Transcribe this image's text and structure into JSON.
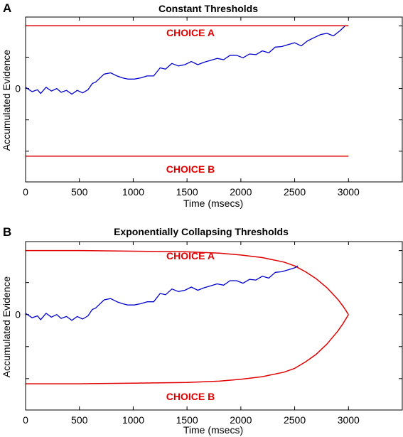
{
  "colors": {
    "threshold": "#e00000",
    "evidence": "#0000cc",
    "axes": "#000000"
  },
  "chart_data": [
    {
      "panel_letter": "A",
      "title": "Constant Thresholds",
      "type": "line",
      "xlabel": "Time (msecs)",
      "ylabel": "Accumulated Evidence",
      "xlim": [
        0,
        3500
      ],
      "ylim": [
        -1.49,
        1.14
      ],
      "x_ticks": [
        0,
        500,
        1000,
        1500,
        2000,
        2500,
        3000
      ],
      "y_ticks": [
        -1.0,
        -0.5,
        0,
        0.5,
        1.0
      ],
      "y_tick_labels": [
        "",
        "",
        "0",
        "",
        ""
      ],
      "grid": false,
      "annotations": [
        "CHOICE A",
        "CHOICE B"
      ],
      "series": [
        {
          "role": "threshold_upper",
          "x": [
            0,
            3000
          ],
          "y": [
            1.0,
            1.0
          ]
        },
        {
          "role": "threshold_lower",
          "x": [
            0,
            3000
          ],
          "y": [
            -1.08,
            -1.08
          ]
        },
        {
          "role": "evidence",
          "x": [
            0,
            60,
            110,
            140,
            190,
            240,
            290,
            330,
            380,
            430,
            480,
            530,
            580,
            620,
            650,
            680,
            730,
            790,
            850,
            900,
            950,
            1010,
            1070,
            1130,
            1190,
            1250,
            1300,
            1360,
            1420,
            1480,
            1540,
            1600,
            1660,
            1720,
            1780,
            1840,
            1900,
            1960,
            2020,
            2080,
            2140,
            2200,
            2260,
            2320,
            2380,
            2440,
            2500,
            2560,
            2620,
            2680,
            2740,
            2800,
            2860,
            2920,
            2970
          ],
          "y": [
            0.02,
            -0.05,
            -0.02,
            -0.08,
            0.02,
            -0.04,
            0.0,
            -0.06,
            -0.03,
            -0.09,
            -0.03,
            -0.07,
            -0.02,
            0.08,
            0.1,
            0.15,
            0.23,
            0.25,
            0.2,
            0.17,
            0.15,
            0.15,
            0.17,
            0.2,
            0.2,
            0.33,
            0.31,
            0.4,
            0.36,
            0.38,
            0.43,
            0.38,
            0.42,
            0.45,
            0.48,
            0.46,
            0.53,
            0.53,
            0.49,
            0.55,
            0.54,
            0.6,
            0.57,
            0.66,
            0.67,
            0.7,
            0.73,
            0.68,
            0.76,
            0.81,
            0.86,
            0.88,
            0.84,
            0.92,
            1.0
          ]
        }
      ]
    },
    {
      "panel_letter": "B",
      "title": "Exponentially Collapsing Thresholds",
      "type": "line",
      "xlabel": "Time (msecs)",
      "ylabel": "Accumulated Evidence",
      "xlim": [
        0,
        3500
      ],
      "ylim": [
        -1.49,
        1.14
      ],
      "x_ticks": [
        0,
        500,
        1000,
        1500,
        2000,
        2500,
        3000
      ],
      "y_ticks": [
        -1.0,
        -0.5,
        0,
        0.5,
        1.0
      ],
      "y_tick_labels": [
        "",
        "",
        "0",
        "",
        ""
      ],
      "grid": false,
      "annotations": [
        "CHOICE A",
        "CHOICE B"
      ],
      "series": [
        {
          "role": "threshold_upper",
          "x": [
            0,
            500,
            1000,
            1500,
            1800,
            2000,
            2200,
            2400,
            2500,
            2600,
            2700,
            2800,
            2900,
            2950,
            3000
          ],
          "y": [
            1.0,
            1.0,
            0.99,
            0.98,
            0.96,
            0.93,
            0.89,
            0.82,
            0.76,
            0.67,
            0.56,
            0.42,
            0.24,
            0.13,
            0.0
          ]
        },
        {
          "role": "threshold_lower",
          "x": [
            0,
            500,
            1000,
            1500,
            1800,
            2000,
            2200,
            2400,
            2500,
            2600,
            2700,
            2800,
            2900,
            2950,
            3000
          ],
          "y": [
            -1.08,
            -1.08,
            -1.07,
            -1.06,
            -1.04,
            -1.01,
            -0.97,
            -0.9,
            -0.84,
            -0.74,
            -0.62,
            -0.46,
            -0.26,
            -0.14,
            0.0
          ]
        },
        {
          "role": "evidence",
          "x": [
            0,
            60,
            110,
            140,
            190,
            240,
            290,
            330,
            380,
            430,
            480,
            530,
            580,
            620,
            650,
            680,
            730,
            790,
            850,
            900,
            950,
            1010,
            1070,
            1130,
            1190,
            1250,
            1300,
            1360,
            1420,
            1480,
            1540,
            1600,
            1660,
            1720,
            1780,
            1840,
            1900,
            1960,
            2020,
            2080,
            2140,
            2200,
            2260,
            2320,
            2380,
            2440,
            2500,
            2530
          ],
          "y": [
            0.02,
            -0.05,
            -0.02,
            -0.08,
            0.02,
            -0.04,
            0.0,
            -0.06,
            -0.03,
            -0.09,
            -0.03,
            -0.07,
            -0.02,
            0.08,
            0.1,
            0.15,
            0.23,
            0.25,
            0.2,
            0.17,
            0.15,
            0.15,
            0.17,
            0.2,
            0.2,
            0.33,
            0.31,
            0.4,
            0.36,
            0.38,
            0.43,
            0.38,
            0.42,
            0.45,
            0.48,
            0.46,
            0.53,
            0.53,
            0.49,
            0.55,
            0.54,
            0.6,
            0.57,
            0.66,
            0.67,
            0.7,
            0.73,
            0.76
          ]
        }
      ]
    }
  ]
}
